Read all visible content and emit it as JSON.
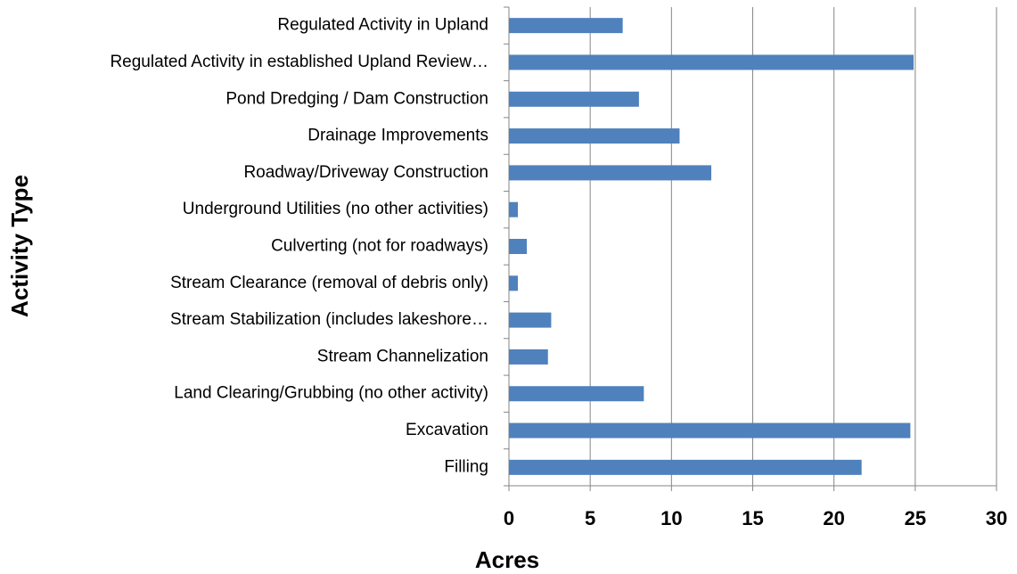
{
  "chart_data": {
    "type": "barh",
    "categories": [
      "Regulated Activity in Upland",
      "Regulated Activity in established Upland Review…",
      "Pond Dredging / Dam Construction",
      "Drainage Improvements",
      "Roadway/Driveway Construction",
      "Underground Utilities (no other activities)",
      "Culverting (not for roadways)",
      "Stream Clearance (removal of debris only)",
      "Stream Stabilization (includes lakeshore…",
      "Stream Channelization",
      "Land Clearing/Grubbing (no other activity)",
      "Excavation",
      "Filling"
    ],
    "values": [
      7.0,
      24.9,
      8.0,
      10.5,
      12.45,
      0.55,
      1.1,
      0.55,
      2.6,
      2.4,
      8.3,
      24.7,
      21.7
    ],
    "color": "#4f81bd",
    "xlabel": "Acres",
    "ylabel": "Activity Type",
    "xlim": [
      0,
      30
    ],
    "xticks": [
      0,
      5,
      10,
      15,
      20,
      25,
      30
    ],
    "grid": true
  }
}
